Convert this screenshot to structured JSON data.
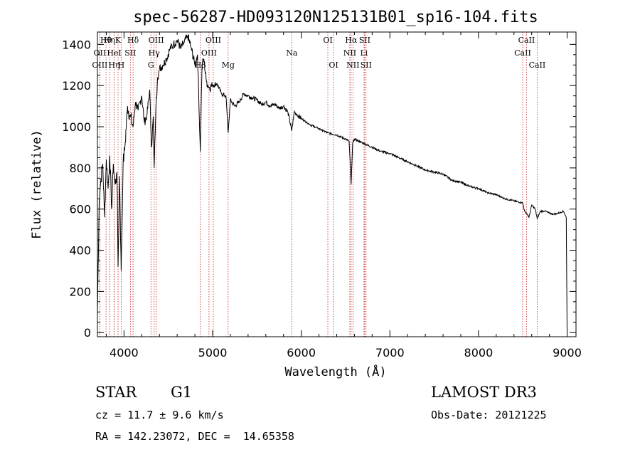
{
  "chart_data": {
    "type": "line",
    "title": "spec-56287-HD093120N125131B01_sp16-104.fits",
    "xlabel": "Wavelength (Å)",
    "ylabel": "Flux (relative)",
    "xlim": [
      3700,
      9100
    ],
    "ylim": [
      -20,
      1460
    ],
    "xticks": [
      4000,
      5000,
      6000,
      7000,
      8000,
      9000
    ],
    "xtick_labels": [
      "4000",
      "5000",
      "6000",
      "7000",
      "8000",
      "9000"
    ],
    "yticks": [
      0,
      200,
      400,
      600,
      800,
      1000,
      1200,
      1400
    ],
    "ytick_labels": [
      "0",
      "200",
      "400",
      "600",
      "800",
      "1000",
      "1200",
      "1400"
    ],
    "grid": false,
    "series": [
      {
        "name": "flux",
        "x": [
          3700,
          3720,
          3740,
          3760,
          3780,
          3800,
          3820,
          3840,
          3860,
          3880,
          3900,
          3920,
          3933,
          3950,
          3968,
          3990,
          4010,
          4040,
          4070,
          4102,
          4130,
          4160,
          4200,
          4230,
          4260,
          4290,
          4310,
          4330,
          4340,
          4360,
          4380,
          4400,
          4440,
          4480,
          4520,
          4560,
          4600,
          4640,
          4680,
          4720,
          4760,
          4800,
          4830,
          4861,
          4880,
          4900,
          4930,
          4960,
          5000,
          5050,
          5100,
          5150,
          5175,
          5200,
          5250,
          5300,
          5350,
          5400,
          5450,
          5500,
          5550,
          5600,
          5650,
          5700,
          5750,
          5800,
          5850,
          5893,
          5920,
          5950,
          6000,
          6100,
          6200,
          6300,
          6400,
          6500,
          6540,
          6563,
          6580,
          6600,
          6650,
          6700,
          6800,
          6900,
          7000,
          7100,
          7200,
          7300,
          7400,
          7500,
          7600,
          7700,
          7800,
          7900,
          8000,
          8100,
          8200,
          8300,
          8400,
          8498,
          8520,
          8542,
          8570,
          8600,
          8640,
          8662,
          8700,
          8750,
          8800,
          8850,
          8900,
          8960,
          8990,
          9000
        ],
        "y": [
          100,
          640,
          750,
          820,
          560,
          840,
          700,
          860,
          600,
          820,
          720,
          780,
          320,
          760,
          300,
          820,
          900,
          1100,
          1050,
          1000,
          1120,
          1080,
          1150,
          1020,
          1060,
          1180,
          900,
          1050,
          800,
          1100,
          1240,
          1280,
          1300,
          1330,
          1380,
          1400,
          1420,
          1380,
          1410,
          1440,
          1380,
          1300,
          1350,
          880,
          1300,
          1330,
          1220,
          1190,
          1200,
          1210,
          1160,
          1150,
          970,
          1130,
          1100,
          1120,
          1160,
          1150,
          1140,
          1130,
          1110,
          1120,
          1100,
          1110,
          1090,
          1100,
          1070,
          980,
          1070,
          1060,
          1040,
          1010,
          990,
          970,
          960,
          940,
          930,
          720,
          920,
          940,
          930,
          920,
          900,
          880,
          870,
          850,
          830,
          810,
          790,
          780,
          770,
          740,
          730,
          710,
          700,
          680,
          670,
          650,
          640,
          630,
          590,
          580,
          560,
          620,
          600,
          555,
          590,
          590,
          580,
          575,
          580,
          590,
          560,
          0
        ]
      }
    ],
    "line_markers": [
      {
        "label": "Hθ",
        "wl": 3797,
        "row": 0
      },
      {
        "label": "OII",
        "wl": 3727,
        "row": 1
      },
      {
        "label": "OIII",
        "wl": 3727,
        "row": 2
      },
      {
        "label": "Hη",
        "wl": 3835,
        "row": 0
      },
      {
        "label": "HeI",
        "wl": 3889,
        "row": 1
      },
      {
        "label": "Hη",
        "wl": 3889,
        "row": 2
      },
      {
        "label": "K",
        "wl": 3933,
        "row": 0
      },
      {
        "label": "SII",
        "wl": 4072,
        "row": 1
      },
      {
        "label": "H",
        "wl": 3968,
        "row": 2
      },
      {
        "label": "Hδ",
        "wl": 4102,
        "row": 0
      },
      {
        "label": "OIII",
        "wl": 4363,
        "row": 0
      },
      {
        "label": "Hγ",
        "wl": 4340,
        "row": 1
      },
      {
        "label": "G",
        "wl": 4304,
        "row": 2
      },
      {
        "label": "Hβ",
        "wl": 4861,
        "row": 2
      },
      {
        "label": "OIII",
        "wl": 4959,
        "row": 1
      },
      {
        "label": "OIII",
        "wl": 5007,
        "row": 0
      },
      {
        "label": "Mg",
        "wl": 5175,
        "row": 2
      },
      {
        "label": "Na",
        "wl": 5893,
        "row": 1
      },
      {
        "label": "OI",
        "wl": 6300,
        "row": 0
      },
      {
        "label": "OI",
        "wl": 6364,
        "row": 2
      },
      {
        "label": "Hα",
        "wl": 6563,
        "row": 0
      },
      {
        "label": "NII",
        "wl": 6548,
        "row": 1
      },
      {
        "label": "NII",
        "wl": 6583,
        "row": 2
      },
      {
        "label": "SII",
        "wl": 6716,
        "row": 0
      },
      {
        "label": "Li",
        "wl": 6708,
        "row": 1
      },
      {
        "label": "SII",
        "wl": 6731,
        "row": 2
      },
      {
        "label": "CaII",
        "wl": 8542,
        "row": 0
      },
      {
        "label": "CaII",
        "wl": 8498,
        "row": 1
      },
      {
        "label": "CaII",
        "wl": 8662,
        "row": 2
      }
    ]
  },
  "info": {
    "object_class": "STAR",
    "subclass": "G1",
    "survey": "LAMOST DR3",
    "redshift": "cz = 11.7 ± 9.6 km/s",
    "obs_date": "Obs-Date: 20121225",
    "coords": "RA = 142.23072, DEC =  14.65358"
  },
  "colors": {
    "spectrum": "#000000",
    "line_marker": "#c62828",
    "axis": "#000000"
  }
}
